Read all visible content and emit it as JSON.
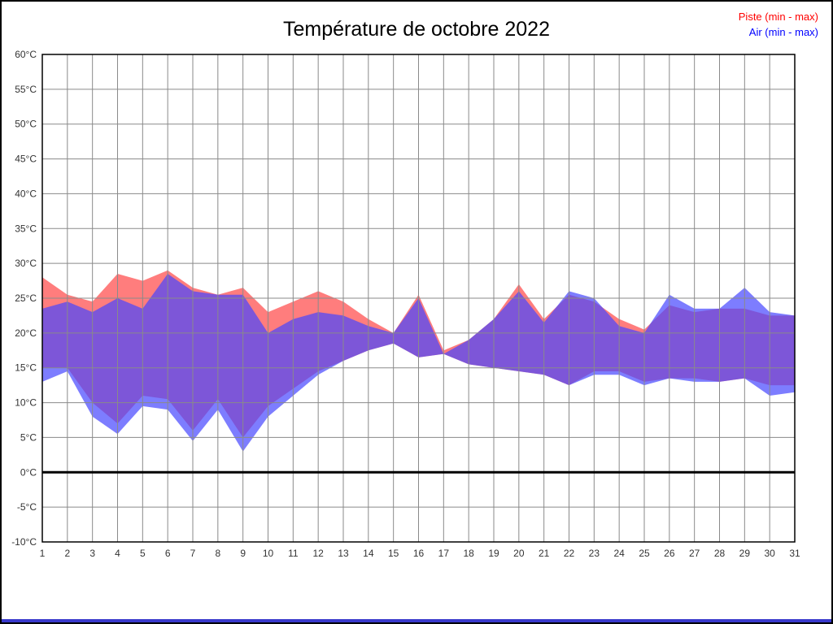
{
  "chart_data": {
    "type": "area",
    "title": "Température de octobre 2022",
    "unit": "°C",
    "xlabel": "",
    "ylabel": "",
    "ylim": [
      -10,
      60
    ],
    "ytick_step": 5,
    "grid": true,
    "legend_position": "top-right",
    "series_labels": {
      "piste": "Piste (min - max)",
      "air": "Air (min - max)"
    },
    "colors": {
      "piste": "#ff4646",
      "air": "#4646ff",
      "piste_legend": "#ff0000",
      "air_legend": "#0000ff",
      "zero_line": "#000000",
      "grid": "#8a8a8a"
    },
    "days": [
      1,
      2,
      3,
      4,
      5,
      6,
      7,
      8,
      9,
      10,
      11,
      12,
      13,
      14,
      15,
      16,
      17,
      18,
      19,
      20,
      21,
      22,
      23,
      24,
      25,
      26,
      27,
      28,
      29,
      30,
      31
    ],
    "series": {
      "piste_max": [
        28,
        25.5,
        24.5,
        28.5,
        27.5,
        29,
        26.5,
        25.5,
        26.5,
        23,
        24.5,
        26,
        24.5,
        22,
        20,
        25.5,
        17.5,
        19,
        22,
        27,
        22,
        25.5,
        24.5,
        22,
        20.5,
        24,
        23,
        23.5,
        23.5,
        22.5,
        22.5
      ],
      "piste_min": [
        15,
        15,
        10,
        7,
        11,
        10.5,
        6,
        10.5,
        5,
        9.5,
        12,
        14.5,
        16,
        17.5,
        18.5,
        16.5,
        17,
        15.5,
        15,
        14.5,
        14,
        12.5,
        14.5,
        14.5,
        13,
        13.5,
        13.5,
        13,
        13.5,
        12.5,
        12.5
      ],
      "air_max": [
        23.5,
        24.5,
        23,
        25,
        23.5,
        28.5,
        26,
        25.5,
        25.5,
        20,
        22,
        23,
        22.5,
        21,
        20,
        25,
        17,
        19,
        22,
        26,
        21.5,
        26,
        25,
        21,
        20,
        25.5,
        23.5,
        23.5,
        26.5,
        23,
        22.5
      ],
      "air_min": [
        13,
        14.5,
        8,
        5.5,
        9.5,
        9,
        4.5,
        9,
        3,
        8,
        11,
        14,
        16,
        17.5,
        18.5,
        16.5,
        17,
        15.5,
        15,
        14.5,
        14,
        12.5,
        14,
        14,
        12.5,
        13.5,
        13,
        13,
        13.5,
        11,
        11.5
      ]
    }
  }
}
